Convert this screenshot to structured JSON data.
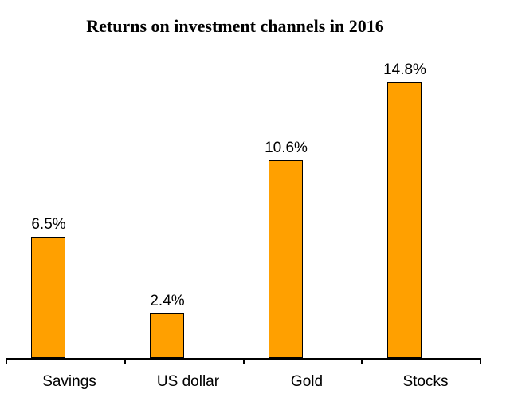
{
  "chart_data": {
    "type": "bar",
    "title": "Returns on investment channels in 2016",
    "categories": [
      "Savings",
      "US dollar",
      "Gold",
      "Stocks"
    ],
    "values": [
      6.5,
      2.4,
      10.6,
      14.8
    ],
    "data_labels": [
      "6.5%",
      "2.4%",
      "10.6%",
      "14.8%"
    ],
    "xlabel": "",
    "ylabel": "",
    "unit": "%",
    "ylim": [
      0,
      15
    ],
    "grid": false,
    "legend": "none",
    "y_axis_visible": false,
    "x_axis_tick_positions": [
      "left-edge",
      "between-categories",
      "right-edge"
    ],
    "colors": {
      "bar_fill": "#FFA000",
      "bar_border": "#000000",
      "axis": "#000000",
      "text": "#000000",
      "background": "#FFFFFF"
    }
  }
}
